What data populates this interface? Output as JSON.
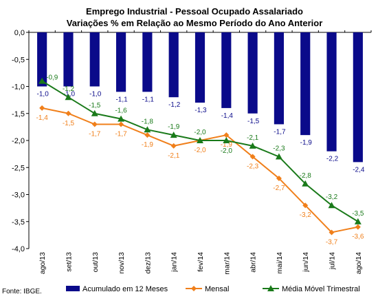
{
  "source": "Fonte: IBGE.",
  "chart_data": {
    "type": "bar",
    "title": "Emprego Industrial - Pessoal Ocupado Assalariado",
    "subtitle": "Variações % em Relação ao Mesmo Período do Ano Anterior",
    "categories": [
      "ago/13",
      "set/13",
      "out/13",
      "nov/13",
      "dez/13",
      "jan/14",
      "fev/14",
      "mar/14",
      "abr/14",
      "mai/14",
      "jun/14",
      "jul/14",
      "ago/14"
    ],
    "ylim": [
      -4.0,
      0.0
    ],
    "yticks": [
      "0,0",
      "-0,5",
      "-1,0",
      "-1,5",
      "-2,0",
      "-2,5",
      "-3,0",
      "-3,5",
      "-4,0"
    ],
    "ytick_values": [
      0,
      -0.5,
      -1.0,
      -1.5,
      -2.0,
      -2.5,
      -3.0,
      -3.5,
      -4.0
    ],
    "grid": false,
    "legend_position": "bottom",
    "series": [
      {
        "name": "Acumulado em 12 Meses",
        "kind": "bar",
        "color": "#0a0a8a",
        "values": [
          -1.0,
          -1.0,
          -1.0,
          -1.1,
          -1.1,
          -1.2,
          -1.3,
          -1.4,
          -1.5,
          -1.7,
          -1.9,
          -2.2,
          -2.4
        ],
        "labels": [
          "-1,0",
          "-1,0",
          "-1,0",
          "-1,1",
          "-1,1",
          "-1,2",
          "-1,3",
          "-1,4",
          "-1,5",
          "-1,7",
          "-1,9",
          "-2,2",
          "-2,4"
        ],
        "label_color": "#0a0a8a"
      },
      {
        "name": "Mensal",
        "kind": "line",
        "marker": "diamond",
        "color": "#f07f1a",
        "values": [
          -1.4,
          -1.5,
          -1.7,
          -1.7,
          -1.9,
          -2.1,
          -2.0,
          -1.9,
          -2.3,
          -2.7,
          -3.2,
          -3.7,
          -3.6
        ],
        "labels": [
          "-1,4",
          "-1,5",
          "-1,7",
          "-1,7",
          "-1,9",
          "-2,1",
          "-2,0",
          "-1,9",
          "-2,3",
          "-2,7",
          "-3,2",
          "-3,7",
          "-3,6"
        ],
        "label_color": "#f07f1a"
      },
      {
        "name": "Média Móvel Trimestral",
        "kind": "line",
        "marker": "triangle",
        "color": "#1a7a1a",
        "values": [
          -0.9,
          -1.2,
          -1.5,
          -1.6,
          -1.8,
          -1.9,
          -2.0,
          -2.0,
          -2.1,
          -2.3,
          -2.8,
          -3.2,
          -3.5
        ],
        "labels": [
          "-0,9",
          "-1,2",
          "-1,5",
          "-1,6",
          "-1,8",
          "-1,9",
          "-2,0",
          "-2,0",
          "-2,1",
          "-2,3",
          "-2,8",
          "-3,2",
          "-3,5"
        ],
        "label_color": "#1a7a1a"
      }
    ]
  }
}
